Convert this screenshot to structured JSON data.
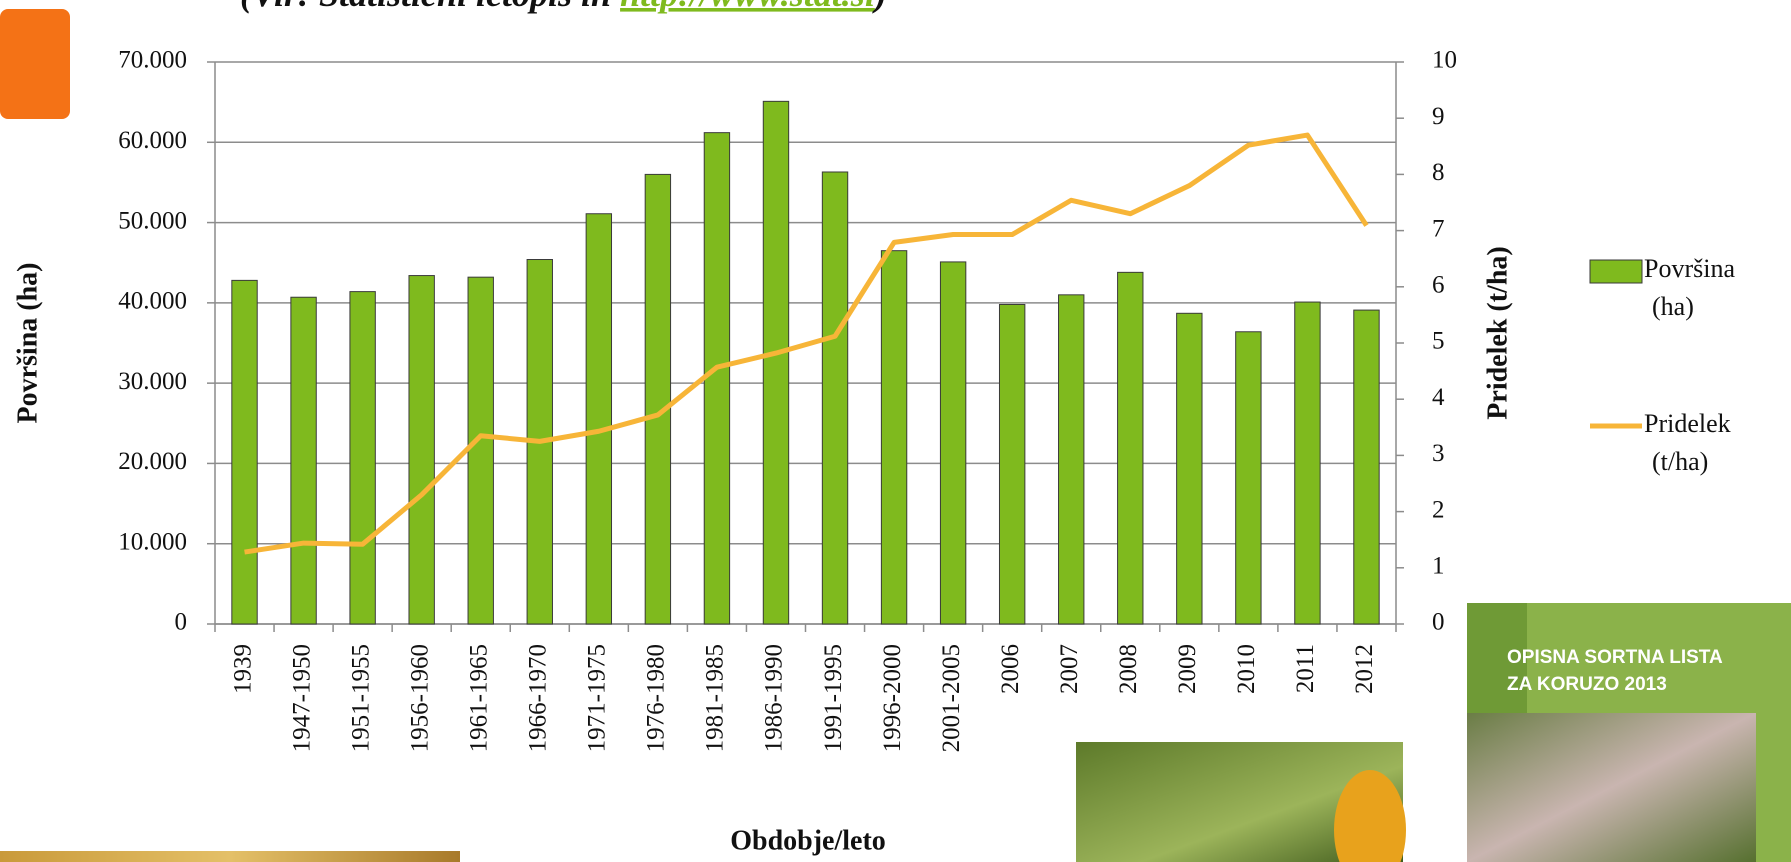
{
  "header": {
    "source_prefix": "(Vir: Statistični letopis in ",
    "source_link": "http://www.stat.si",
    "source_suffix": ")"
  },
  "cover": {
    "line1": "OPISNA SORTNA LISTA",
    "line2": "ZA KORUZO 2013"
  },
  "chart_data": {
    "type": "bar_line",
    "x_label": "Obdobje/leto",
    "y_label": "Površina (ha)",
    "y2_label": "Pridelek (t/ha)",
    "categories": [
      "1939",
      "1947-1950",
      "1951-1955",
      "1956-1960",
      "1961-1965",
      "1966-1970",
      "1971-1975",
      "1976-1980",
      "1981-1985",
      "1986-1990",
      "1991-1995",
      "1996-2000",
      "2001-2005",
      "2006",
      "2007",
      "2008",
      "2009",
      "2010",
      "2011",
      "2012"
    ],
    "series": [
      {
        "name": "Površina (ha)",
        "type": "bar",
        "color": "#7fba1e",
        "values": [
          42800,
          40700,
          41400,
          43400,
          43200,
          45400,
          51100,
          56000,
          61200,
          65100,
          56300,
          46500,
          45100,
          39800,
          41000,
          43800,
          38700,
          36400,
          40100,
          39100
        ]
      },
      {
        "name": "Pridelek (t/ha)",
        "type": "line",
        "axis": "y2",
        "color": "#f7b538",
        "values": [
          1.28,
          1.44,
          1.42,
          2.3,
          3.35,
          3.25,
          3.43,
          3.72,
          4.57,
          4.82,
          5.12,
          6.79,
          6.93,
          6.93,
          7.54,
          7.3,
          7.8,
          8.52,
          8.7,
          7.09
        ]
      }
    ],
    "ylim": [
      0,
      70000
    ],
    "yticks": [
      0,
      {
        "value": 10000,
        "label": "10.000"
      },
      {
        "value": 20000,
        "label": "20.000"
      },
      {
        "value": 30000,
        "label": "30.000"
      },
      {
        "value": 40000,
        "label": "40.000"
      },
      {
        "value": 50000,
        "label": "50.000"
      },
      {
        "value": 60000,
        "label": "60.000"
      },
      {
        "value": 70000,
        "label": "70.000"
      }
    ],
    "y2lim": [
      0,
      10
    ],
    "y2ticks": [
      0,
      1,
      2,
      3,
      4,
      5,
      6,
      7,
      8,
      9,
      10
    ],
    "grid": true,
    "legend": "right"
  }
}
